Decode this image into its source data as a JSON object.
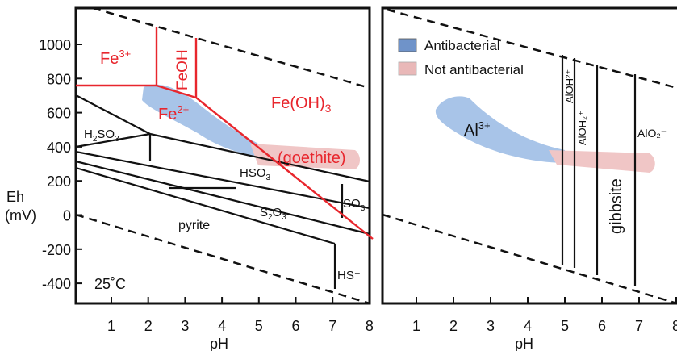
{
  "colors": {
    "fe_boundary": "#e8262d",
    "fe_label": "#e8262d",
    "line": "#111111",
    "antibacterial": "#a8c4e8",
    "not_antibacterial": "#f0c6c6",
    "legend_antibacterial": "#6f93c9",
    "legend_not_antibacterial": "#e9b8b8"
  },
  "axes": {
    "y_title_1": "Eh",
    "y_title_2": "(mV)",
    "x_title_left": "pH",
    "x_title_right": "pH",
    "y_ticks": [
      "1000",
      "800",
      "600",
      "400",
      "200",
      "0",
      "-200",
      "-400"
    ],
    "x_ticks": [
      "1",
      "2",
      "3",
      "4",
      "5",
      "6",
      "7",
      "8"
    ],
    "x_ticks_right": [
      "1",
      "2",
      "3",
      "4",
      "5",
      "6",
      "7",
      "8"
    ]
  },
  "left_panel": {
    "temperature": "25˚C",
    "fe_labels": {
      "fe3_base": "Fe",
      "fe3_sup": "3+",
      "feoh": "FeOH",
      "fe2_base": "Fe",
      "fe2_sup": "2+",
      "feoh3_base": "Fe(OH)",
      "feoh3_sub": "3",
      "goethite": "(goethite)"
    },
    "s_labels": {
      "h2so3_a": "H",
      "h2so3_sub1": "2",
      "h2so3_b": "SO",
      "h2so3_sub2": "3",
      "hso3_a": "HSO",
      "hso3_sub": "3",
      "s2o3_a": "S",
      "s2o3_sub1": "2",
      "s2o3_b": "O",
      "s2o3_sub2": "3",
      "so3_a": "SO",
      "so3_sub": "3",
      "pyrite": "pyrite",
      "hs": "HS⁻"
    }
  },
  "right_panel": {
    "legend": {
      "antibacterial": "Antibacterial",
      "not_antibacterial": "Not antibacterial"
    },
    "al3_base": "Al",
    "al3_sup": "3+",
    "aloh2": "AlOH²⁺",
    "aloh2plus": "AlOH₂⁺",
    "gibbsite": "gibbsite",
    "alo2": "AlO₂⁻"
  }
}
